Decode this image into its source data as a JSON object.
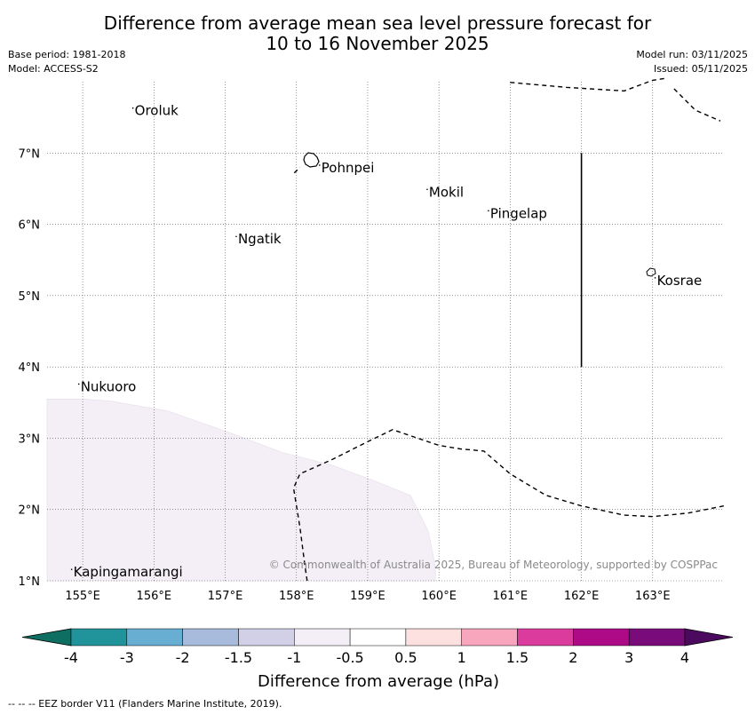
{
  "title_line1": "Difference from average mean sea level pressure forecast for",
  "title_line2": "10 to 16 November 2025",
  "meta_left": [
    "Base period: 1981-2018",
    "Model: ACCESS-S2"
  ],
  "meta_right": [
    "Model run: 03/11/2025",
    "Issued: 05/11/2025"
  ],
  "map": {
    "lon_range": [
      154.5,
      164.0
    ],
    "lat_range": [
      1.0,
      8.0
    ],
    "lon_ticks": [
      {
        "value": 155,
        "label": "155°E"
      },
      {
        "value": 156,
        "label": "156°E"
      },
      {
        "value": 157,
        "label": "157°E"
      },
      {
        "value": 158,
        "label": "158°E"
      },
      {
        "value": 159,
        "label": "159°E"
      },
      {
        "value": 160,
        "label": "160°E"
      },
      {
        "value": 161,
        "label": "161°E"
      },
      {
        "value": 162,
        "label": "162°E"
      },
      {
        "value": 163,
        "label": "163°E"
      }
    ],
    "lat_ticks": [
      {
        "value": 1,
        "label": "1°N"
      },
      {
        "value": 2,
        "label": "2°N"
      },
      {
        "value": 3,
        "label": "3°N"
      },
      {
        "value": 4,
        "label": "4°N"
      },
      {
        "value": 5,
        "label": "5°N"
      },
      {
        "value": 6,
        "label": "6°N"
      },
      {
        "value": 7,
        "label": "7°N"
      }
    ],
    "places": [
      {
        "name": "Oroluk",
        "lon": 155.73,
        "lat": 7.53
      },
      {
        "name": "Pohnpei",
        "lon": 158.35,
        "lat": 6.73
      },
      {
        "name": "Mokil",
        "lon": 159.86,
        "lat": 6.39
      },
      {
        "name": "Pingelap",
        "lon": 160.72,
        "lat": 6.09
      },
      {
        "name": "Ngatik",
        "lon": 157.18,
        "lat": 5.73
      },
      {
        "name": "Kosrae",
        "lon": 163.06,
        "lat": 5.15
      },
      {
        "name": "Nukuoro",
        "lon": 154.97,
        "lat": 3.66
      },
      {
        "name": "Kapingamarangi",
        "lon": 154.87,
        "lat": 1.06
      }
    ],
    "anomaly_region": {
      "category": "-1 to -0.5",
      "outline": [
        [
          154.5,
          3.55
        ],
        [
          155.0,
          3.55
        ],
        [
          155.4,
          3.52
        ],
        [
          156.2,
          3.38
        ],
        [
          157.0,
          3.1
        ],
        [
          157.8,
          2.8
        ],
        [
          158.5,
          2.62
        ],
        [
          159.1,
          2.4
        ],
        [
          159.6,
          2.2
        ],
        [
          159.85,
          1.7
        ],
        [
          159.95,
          1.2
        ],
        [
          159.95,
          1.0
        ],
        [
          154.5,
          1.0
        ]
      ]
    },
    "eez_border_segments": [
      [
        [
          161.0,
          7.99
        ],
        [
          161.8,
          7.92
        ],
        [
          162.6,
          7.87
        ],
        [
          163.0,
          8.02
        ],
        [
          163.2,
          8.05
        ]
      ],
      [
        [
          163.3,
          7.9
        ],
        [
          163.6,
          7.6
        ],
        [
          163.95,
          7.45
        ]
      ],
      [
        [
          157.97,
          6.72
        ],
        [
          158.05,
          6.8
        ]
      ],
      [
        [
          158.15,
          1.0
        ],
        [
          158.12,
          1.2
        ],
        [
          158.05,
          1.75
        ],
        [
          157.96,
          2.3
        ],
        [
          158.05,
          2.5
        ],
        [
          158.5,
          2.7
        ],
        [
          159.0,
          2.95
        ],
        [
          159.35,
          3.12
        ],
        [
          159.7,
          3.0
        ],
        [
          160.0,
          2.9
        ],
        [
          160.3,
          2.85
        ],
        [
          160.63,
          2.82
        ],
        [
          161.0,
          2.5
        ],
        [
          161.5,
          2.2
        ],
        [
          162.0,
          2.05
        ],
        [
          162.6,
          1.92
        ],
        [
          163.0,
          1.9
        ],
        [
          163.5,
          1.95
        ],
        [
          164.0,
          2.05
        ]
      ]
    ],
    "solid_border": [
      [
        162.0,
        7.0
      ],
      [
        162.0,
        4.0
      ]
    ],
    "credit": "© Commonwealth of Australia 2025, Bureau of Meteorology, supported by COSPPac"
  },
  "colorbar": {
    "title": "Difference from average (hPa)",
    "boundaries": [
      "-4",
      "-3",
      "-2",
      "-1.5",
      "-1",
      "-0.5",
      "0.5",
      "1",
      "1.5",
      "2",
      "3",
      "4"
    ],
    "bins": [
      {
        "range": "< -4",
        "color": "#0e6e61"
      },
      {
        "range": "-4 to -3",
        "color": "#20939b"
      },
      {
        "range": "-3 to -2",
        "color": "#67aed2"
      },
      {
        "range": "-2 to -1.5",
        "color": "#a8bbdc"
      },
      {
        "range": "-1.5 to -1",
        "color": "#d1d0e6"
      },
      {
        "range": "-1 to -0.5",
        "color": "#f4eff6"
      },
      {
        "range": "-0.5 to 0.5",
        "color": "#ffffff"
      },
      {
        "range": "0.5 to 1",
        "color": "#fde0e0"
      },
      {
        "range": "1 to 1.5",
        "color": "#f7a6bd"
      },
      {
        "range": "1.5 to 2",
        "color": "#dc3b9e"
      },
      {
        "range": "2 to 3",
        "color": "#ae0a87"
      },
      {
        "range": "3 to 4",
        "color": "#7a0b7a"
      },
      {
        "range": "> 4",
        "color": "#4b0a5e"
      }
    ]
  },
  "footer": "--  --  -- EEZ border V11 (Flanders Marine Institute, 2019)."
}
